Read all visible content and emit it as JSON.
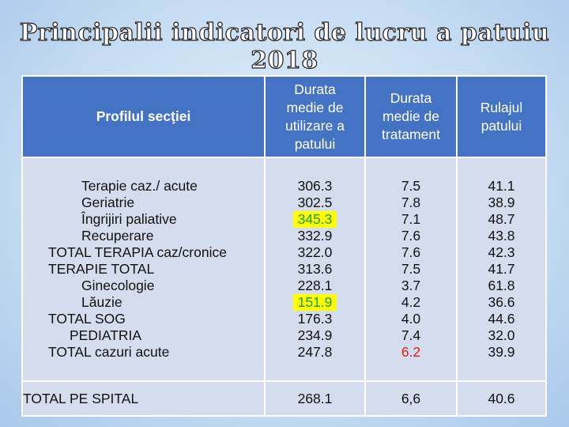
{
  "title": "Principalii indicatori de lucru a patuiu 2018",
  "headers": {
    "profil": "Profilul secţiei",
    "durata_utilizare": [
      "Durata",
      "medie de",
      "utilizare a",
      "patului"
    ],
    "durata_tratament": [
      "Durata",
      "medie de",
      "tratament"
    ],
    "rulaj": [
      "Rulajul",
      "patului"
    ]
  },
  "rows": [
    {
      "name": "Terapie   caz./ acute",
      "u": "306.3",
      "t": "7.5",
      "r": "41.1"
    },
    {
      "name": "Geriatrie",
      "u": "302.5",
      "t": "7.8",
      "r": "38.9"
    },
    {
      "name": "Îngrijiri paliative",
      "u": "345.3",
      "t": "7.1",
      "r": "48.7"
    },
    {
      "name": "Recuperare",
      "u": "332.9",
      "t": "7.6",
      "r": "43.8"
    },
    {
      "name": "TOTAL TERAPIA caz/cronice",
      "u": "322.0",
      "t": "7.6",
      "r": "42.3"
    },
    {
      "name": "TERAPIE   TOTAL",
      "u": "313.6",
      "t": "7.5",
      "r": "41.7"
    },
    {
      "name": "Ginecologie",
      "u": "228.1",
      "t": "3.7",
      "r": "61.8"
    },
    {
      "name": "Lăuzie",
      "u": "151.9",
      "t": "4.2",
      "r": "36.6"
    },
    {
      "name": "TOTAL SOG",
      "u": "176.3",
      "t": "4.0",
      "r": "44.6"
    },
    {
      "name": "PEDIATRIA",
      "u": "234.9",
      "t": "7.4",
      "r": "32.0"
    },
    {
      "name": "TOTAL   cazuri  acute",
      "u": "247.8",
      "t": "6.2",
      "r": "39.9"
    }
  ],
  "total": {
    "name": "TOTAL  PE   SPITAL",
    "u": "268.1",
    "t": "6,6",
    "r": "40.6"
  },
  "colors": {
    "header": "#4472c4",
    "body": "#d4ddee",
    "highlight": "#ffff00",
    "green": "#1f9a3a",
    "red": "#e21b1b"
  }
}
